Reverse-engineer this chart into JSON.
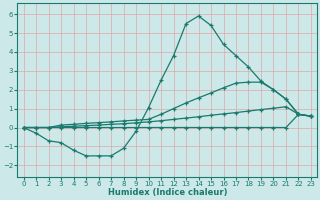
{
  "bg_color": "#cce8e8",
  "grid_color": "#dea8a8",
  "line_color": "#1a7a6e",
  "xlabel": "Humidex (Indice chaleur)",
  "xlim": [
    -0.5,
    23.5
  ],
  "ylim": [
    -2.6,
    6.6
  ],
  "xticks": [
    0,
    1,
    2,
    3,
    4,
    5,
    6,
    7,
    8,
    9,
    10,
    11,
    12,
    13,
    14,
    15,
    16,
    17,
    18,
    19,
    20,
    21,
    22,
    23
  ],
  "yticks": [
    -2,
    -1,
    0,
    1,
    2,
    3,
    4,
    5,
    6
  ],
  "curve_main": [
    0.0,
    -0.3,
    -0.7,
    -0.8,
    -1.2,
    -1.5,
    -1.5,
    -1.5,
    -1.1,
    -0.2,
    1.05,
    2.5,
    3.8,
    5.5,
    5.9,
    5.4,
    4.4,
    3.8,
    3.2,
    2.45,
    2.0,
    1.5,
    0.7,
    0.6
  ],
  "line_upper": [
    0.0,
    0.0,
    0.0,
    0.13,
    0.17,
    0.22,
    0.26,
    0.3,
    0.35,
    0.39,
    0.43,
    0.7,
    1.0,
    1.3,
    1.57,
    1.83,
    2.1,
    2.35,
    2.4,
    2.4,
    2.0,
    1.5,
    0.7,
    0.6
  ],
  "line_mid": [
    0.0,
    0.0,
    0.0,
    0.04,
    0.07,
    0.1,
    0.13,
    0.17,
    0.2,
    0.25,
    0.3,
    0.36,
    0.43,
    0.5,
    0.57,
    0.65,
    0.72,
    0.79,
    0.87,
    0.95,
    1.02,
    1.1,
    0.7,
    0.6
  ],
  "line_bot": [
    0.0,
    0.0,
    0.0,
    0.0,
    0.0,
    0.0,
    0.0,
    0.0,
    0.0,
    0.0,
    0.0,
    0.0,
    0.0,
    0.0,
    0.0,
    0.0,
    0.0,
    0.0,
    0.0,
    0.0,
    0.0,
    0.0,
    0.7,
    0.6
  ]
}
